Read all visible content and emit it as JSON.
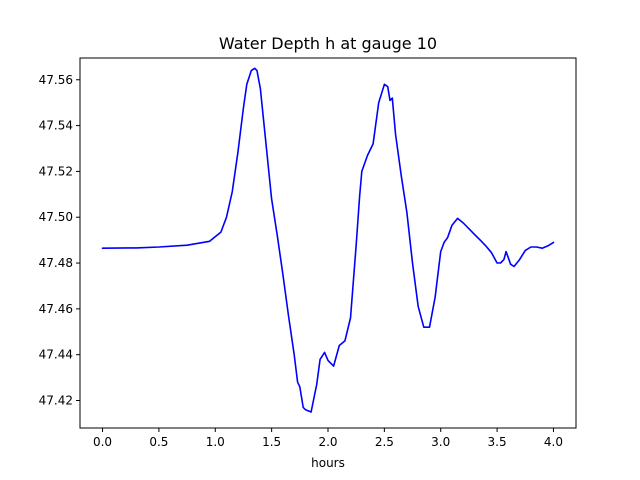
{
  "chart_data": {
    "type": "line",
    "title": "Water Depth h at gauge 10",
    "xlabel": "hours",
    "ylabel": "",
    "xlim": [
      -0.2,
      4.2
    ],
    "ylim": [
      47.408,
      47.5695
    ],
    "xticks": [
      0.0,
      0.5,
      1.0,
      1.5,
      2.0,
      2.5,
      3.0,
      3.5,
      4.0
    ],
    "xtick_labels": [
      "0.0",
      "0.5",
      "1.0",
      "1.5",
      "2.0",
      "2.5",
      "3.0",
      "3.5",
      "4.0"
    ],
    "yticks": [
      47.42,
      47.44,
      47.46,
      47.48,
      47.5,
      47.52,
      47.54,
      47.56
    ],
    "ytick_labels": [
      "47.42",
      "47.44",
      "47.46",
      "47.48",
      "47.50",
      "47.52",
      "47.54",
      "47.56"
    ],
    "grid": false,
    "series": [
      {
        "color": "#0000ff",
        "x": [
          0.0,
          0.3,
          0.5,
          0.75,
          0.95,
          1.05,
          1.1,
          1.15,
          1.2,
          1.25,
          1.28,
          1.32,
          1.35,
          1.37,
          1.4,
          1.45,
          1.5,
          1.55,
          1.6,
          1.65,
          1.7,
          1.73,
          1.75,
          1.78,
          1.8,
          1.85,
          1.9,
          1.93,
          1.97,
          2.0,
          2.03,
          2.05,
          2.1,
          2.15,
          2.2,
          2.25,
          2.28,
          2.3,
          2.35,
          2.4,
          2.45,
          2.5,
          2.53,
          2.55,
          2.57,
          2.6,
          2.65,
          2.7,
          2.75,
          2.8,
          2.85,
          2.9,
          2.95,
          3.0,
          3.03,
          3.06,
          3.1,
          3.15,
          3.2,
          3.25,
          3.3,
          3.35,
          3.4,
          3.45,
          3.5,
          3.53,
          3.56,
          3.58,
          3.62,
          3.65,
          3.7,
          3.75,
          3.8,
          3.85,
          3.9,
          3.95,
          4.0
        ],
        "y": [
          47.4865,
          47.4866,
          47.487,
          47.4878,
          47.4895,
          47.4935,
          47.5,
          47.511,
          47.528,
          47.548,
          47.558,
          47.564,
          47.565,
          47.564,
          47.556,
          47.532,
          47.508,
          47.492,
          47.475,
          47.457,
          47.44,
          47.428,
          47.426,
          47.417,
          47.416,
          47.415,
          47.427,
          47.438,
          47.441,
          47.4375,
          47.436,
          47.435,
          47.444,
          47.446,
          47.456,
          47.488,
          47.509,
          47.52,
          47.527,
          47.532,
          47.55,
          47.558,
          47.557,
          47.551,
          47.552,
          47.536,
          47.518,
          47.502,
          47.48,
          47.461,
          47.452,
          47.452,
          47.465,
          47.485,
          47.489,
          47.491,
          47.4965,
          47.4995,
          47.4975,
          47.495,
          47.4925,
          47.49,
          47.4875,
          47.4845,
          47.48,
          47.48,
          47.4815,
          47.485,
          47.4795,
          47.4785,
          47.4815,
          47.4855,
          47.487,
          47.487,
          47.4865,
          47.4875,
          47.489
        ]
      }
    ]
  }
}
